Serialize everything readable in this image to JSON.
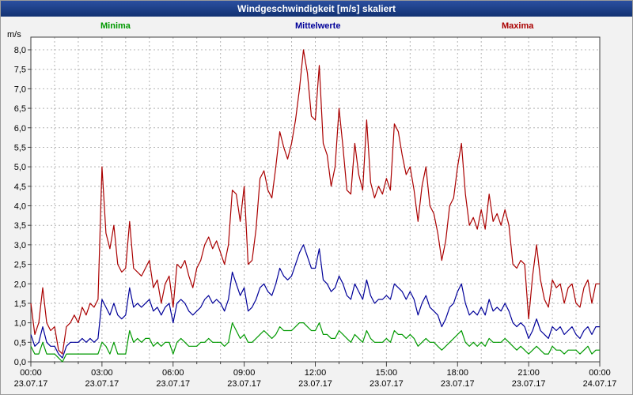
{
  "window": {
    "title": "Windgeschwindigkeit [m/s] skaliert"
  },
  "unit_label": "m/s",
  "legend": [
    {
      "label": "Minima",
      "color": "#009900"
    },
    {
      "label": "Mittelwerte",
      "color": "#000099"
    },
    {
      "label": "Maxima",
      "color": "#aa0000"
    }
  ],
  "chart_data": {
    "type": "line",
    "title": "Windgeschwindigkeit [m/s] skaliert",
    "xlabel": "",
    "ylabel": "m/s",
    "ylim": [
      0,
      8.3
    ],
    "y_tick_step": 0.5,
    "grid": "dashed",
    "legend_position": "top",
    "y_tick_labels": [
      "0,0",
      "0,5",
      "1,0",
      "1,5",
      "2,0",
      "2,5",
      "3,0",
      "3,5",
      "4,0",
      "4,5",
      "5,0",
      "5,5",
      "6,0",
      "6,5",
      "7,0",
      "7,5",
      "8,0"
    ],
    "x_tick_labels": [
      "00:00",
      "03:00",
      "06:00",
      "09:00",
      "12:00",
      "15:00",
      "18:00",
      "21:00",
      "00:00"
    ],
    "x_tick_dates": [
      "23.07.17",
      "23.07.17",
      "23.07.17",
      "23.07.17",
      "23.07.17",
      "23.07.17",
      "23.07.17",
      "23.07.17",
      "24.07.17"
    ],
    "x_interval_minutes": 10,
    "series": [
      {
        "name": "Minima",
        "color": "#009900",
        "values": [
          0.4,
          0.2,
          0.2,
          0.5,
          0.2,
          0.2,
          0.2,
          0.1,
          0.0,
          0.2,
          0.2,
          0.2,
          0.2,
          0.2,
          0.2,
          0.2,
          0.2,
          0.2,
          0.5,
          0.4,
          0.2,
          0.5,
          0.2,
          0.2,
          0.2,
          0.8,
          0.5,
          0.6,
          0.5,
          0.6,
          0.6,
          0.4,
          0.5,
          0.4,
          0.5,
          0.5,
          0.2,
          0.5,
          0.6,
          0.5,
          0.4,
          0.4,
          0.4,
          0.5,
          0.5,
          0.6,
          0.5,
          0.5,
          0.5,
          0.4,
          0.5,
          1.0,
          0.8,
          0.6,
          0.7,
          0.5,
          0.5,
          0.6,
          0.7,
          0.8,
          0.7,
          0.6,
          0.7,
          0.9,
          0.8,
          0.8,
          0.8,
          0.9,
          1.0,
          1.0,
          0.9,
          0.8,
          0.8,
          1.0,
          0.7,
          0.7,
          0.6,
          0.6,
          0.8,
          0.7,
          0.6,
          0.5,
          0.7,
          0.6,
          0.5,
          0.8,
          0.6,
          0.5,
          0.5,
          0.5,
          0.6,
          0.5,
          0.8,
          0.7,
          0.7,
          0.6,
          0.7,
          0.6,
          0.4,
          0.5,
          0.6,
          0.5,
          0.5,
          0.4,
          0.3,
          0.4,
          0.5,
          0.6,
          0.7,
          0.8,
          0.5,
          0.4,
          0.5,
          0.4,
          0.5,
          0.4,
          0.6,
          0.5,
          0.5,
          0.5,
          0.6,
          0.5,
          0.4,
          0.3,
          0.4,
          0.3,
          0.2,
          0.3,
          0.4,
          0.3,
          0.2,
          0.2,
          0.4,
          0.3,
          0.3,
          0.2,
          0.3,
          0.3,
          0.3,
          0.2,
          0.3,
          0.4,
          0.2,
          0.3,
          0.3
        ]
      },
      {
        "name": "Mittelwerte",
        "color": "#000099",
        "values": [
          0.7,
          0.4,
          0.5,
          0.9,
          0.5,
          0.4,
          0.4,
          0.2,
          0.1,
          0.4,
          0.5,
          0.5,
          0.5,
          0.6,
          0.5,
          0.6,
          0.5,
          0.6,
          1.6,
          1.4,
          1.2,
          1.5,
          1.2,
          1.1,
          1.2,
          1.9,
          1.4,
          1.5,
          1.4,
          1.5,
          1.6,
          1.3,
          1.4,
          1.2,
          1.4,
          1.5,
          1.0,
          1.5,
          1.6,
          1.5,
          1.3,
          1.2,
          1.3,
          1.4,
          1.6,
          1.7,
          1.5,
          1.6,
          1.5,
          1.3,
          1.6,
          2.3,
          2.0,
          1.7,
          1.9,
          1.3,
          1.4,
          1.6,
          1.9,
          2.0,
          1.8,
          1.7,
          2.0,
          2.4,
          2.2,
          2.1,
          2.2,
          2.5,
          2.8,
          3.0,
          2.7,
          2.4,
          2.4,
          2.9,
          2.1,
          2.0,
          1.8,
          1.9,
          2.2,
          2.0,
          1.7,
          1.6,
          2.0,
          1.8,
          1.6,
          2.1,
          1.7,
          1.5,
          1.6,
          1.6,
          1.7,
          1.6,
          2.0,
          1.9,
          1.8,
          1.6,
          1.8,
          1.6,
          1.2,
          1.5,
          1.7,
          1.4,
          1.3,
          1.2,
          0.9,
          1.1,
          1.4,
          1.5,
          1.8,
          2.0,
          1.5,
          1.2,
          1.3,
          1.2,
          1.4,
          1.2,
          1.6,
          1.3,
          1.4,
          1.3,
          1.5,
          1.3,
          1.0,
          0.9,
          1.0,
          0.9,
          0.6,
          0.8,
          1.1,
          0.8,
          0.7,
          0.6,
          0.9,
          0.8,
          0.9,
          0.7,
          0.8,
          0.9,
          0.7,
          0.6,
          0.8,
          0.9,
          0.7,
          0.9,
          0.9
        ]
      },
      {
        "name": "Maxima",
        "color": "#aa0000",
        "values": [
          1.5,
          0.7,
          1.0,
          1.9,
          1.0,
          0.8,
          0.9,
          0.3,
          0.2,
          0.9,
          1.0,
          1.2,
          1.0,
          1.4,
          1.2,
          1.5,
          1.4,
          1.6,
          5.0,
          3.3,
          2.9,
          3.5,
          2.5,
          2.3,
          2.4,
          3.6,
          2.4,
          2.3,
          2.2,
          2.4,
          2.6,
          1.9,
          2.1,
          1.5,
          2.0,
          2.2,
          1.4,
          2.5,
          2.4,
          2.6,
          2.2,
          1.9,
          2.4,
          2.6,
          3.0,
          3.2,
          2.9,
          3.1,
          2.8,
          2.5,
          3.0,
          4.4,
          4.3,
          3.6,
          4.5,
          2.5,
          2.6,
          3.4,
          4.7,
          4.9,
          4.4,
          4.2,
          5.0,
          5.9,
          5.5,
          5.2,
          5.6,
          6.2,
          7.0,
          8.0,
          7.4,
          6.3,
          6.2,
          7.6,
          5.6,
          5.3,
          4.5,
          5.0,
          6.5,
          5.5,
          4.4,
          4.3,
          5.6,
          4.8,
          4.4,
          6.2,
          4.6,
          4.2,
          4.5,
          4.3,
          4.7,
          4.4,
          6.1,
          5.9,
          5.3,
          4.8,
          5.0,
          4.4,
          3.6,
          4.5,
          5.0,
          4.0,
          3.8,
          3.3,
          2.6,
          3.1,
          4.0,
          4.2,
          5.0,
          5.6,
          4.3,
          3.5,
          3.7,
          3.4,
          3.9,
          3.4,
          4.3,
          3.6,
          3.8,
          3.5,
          3.9,
          3.5,
          2.5,
          2.4,
          2.6,
          2.5,
          1.1,
          2.2,
          3.0,
          2.1,
          1.6,
          1.4,
          2.1,
          1.9,
          2.0,
          1.5,
          1.9,
          2.0,
          1.5,
          1.4,
          1.9,
          2.1,
          1.5,
          2.0,
          2.0
        ]
      }
    ]
  }
}
